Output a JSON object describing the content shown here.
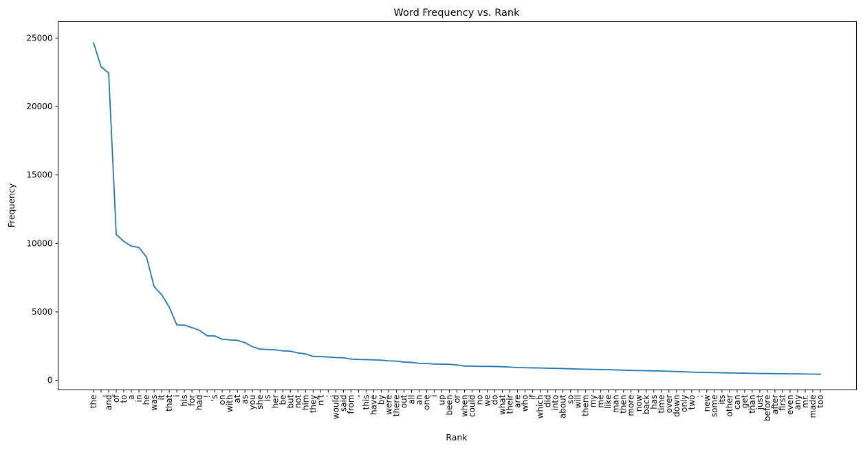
{
  "chart_data": {
    "type": "line",
    "title": "Word Frequency vs. Rank",
    "xlabel": "Rank",
    "ylabel": "Frequency",
    "ylim": [
      -700,
      26200
    ],
    "yticks": [
      0,
      5000,
      10000,
      15000,
      20000,
      25000
    ],
    "grid": false,
    "legend": "none",
    "line_color": "#1f77b4",
    "categories": [
      "the",
      ",",
      "and",
      "of",
      "to",
      "a",
      "in",
      "he",
      "was",
      "it",
      "that",
      "i",
      "his",
      "for",
      "had",
      "!",
      "'s",
      "on",
      "with",
      "at",
      "as",
      "you",
      "she",
      "is",
      "her",
      "be",
      "but",
      "not",
      "him",
      "they",
      "n't",
      ":",
      "would",
      "said",
      "from",
      "-",
      "this",
      "have",
      "by",
      "were",
      "there",
      "out",
      "all",
      "an",
      "one",
      "i",
      "up",
      "been",
      "or",
      "when",
      "could",
      "no",
      "we",
      "do",
      "what",
      "their",
      "are",
      "who",
      "if",
      "which",
      "did",
      "into",
      "about",
      "so",
      "will",
      "them",
      "my",
      "me",
      "like",
      "man",
      "then",
      "more",
      "now",
      "back",
      "has",
      "time",
      "over",
      "down",
      "only",
      "two",
      ";",
      "new",
      "some",
      "its",
      "other",
      "can",
      "get",
      "than",
      "just",
      "before",
      "after",
      "first",
      "even",
      "any",
      "mr.",
      "made",
      "too"
    ],
    "values": [
      24650,
      22900,
      22450,
      10650,
      10150,
      9800,
      9700,
      9000,
      6850,
      6250,
      5350,
      4050,
      4030,
      3850,
      3650,
      3250,
      3240,
      3000,
      2950,
      2920,
      2750,
      2450,
      2280,
      2250,
      2230,
      2150,
      2130,
      2000,
      1930,
      1750,
      1730,
      1700,
      1660,
      1650,
      1550,
      1520,
      1510,
      1490,
      1470,
      1420,
      1400,
      1330,
      1310,
      1240,
      1230,
      1190,
      1180,
      1170,
      1130,
      1040,
      1030,
      1020,
      1020,
      1010,
      990,
      970,
      930,
      920,
      910,
      900,
      880,
      870,
      860,
      840,
      820,
      810,
      800,
      790,
      780,
      760,
      740,
      720,
      710,
      700,
      690,
      680,
      660,
      640,
      620,
      600,
      580,
      570,
      560,
      550,
      540,
      530,
      520,
      510,
      500,
      495,
      490,
      480,
      475,
      470,
      460,
      455,
      445
    ]
  }
}
